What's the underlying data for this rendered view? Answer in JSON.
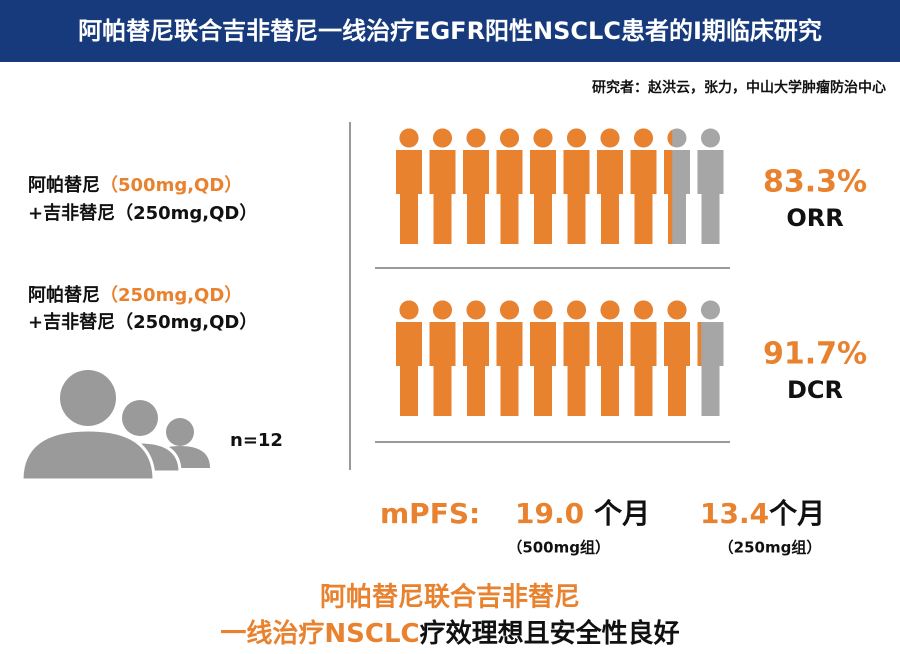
{
  "header": {
    "title": "阿帕替尼联合吉非替尼一线治疗EGFR阳性NSCLC患者的I期临床研究"
  },
  "byline": "研究者：赵洪云，张力，中山大学肿瘤防治中心",
  "groups": [
    {
      "drug": "阿帕替尼",
      "dose": "（500mg,QD）",
      "combo": "+吉非替尼（250mg,QD）"
    },
    {
      "drug": "阿帕替尼",
      "dose": "（250mg,QD）",
      "combo": "+吉非替尼（250mg,QD）"
    }
  ],
  "sample_size": "n=12",
  "metrics": [
    {
      "name": "ORR",
      "value": 83.3,
      "value_label": "83.3%"
    },
    {
      "name": "DCR",
      "value": 91.7,
      "value_label": "91.7%"
    }
  ],
  "mpfs": {
    "label": "mPFS:",
    "items": [
      {
        "value": "19.0",
        "unit": "个月",
        "group": "（500mg组）"
      },
      {
        "value": "13.4",
        "unit": "个月",
        "group": "（250mg组）"
      }
    ]
  },
  "conclusion": {
    "line1": "阿帕替尼联合吉非替尼",
    "line2_highlight": "一线治疗NSCLC",
    "line2_rest": "疗效理想且安全性良好"
  }
}
